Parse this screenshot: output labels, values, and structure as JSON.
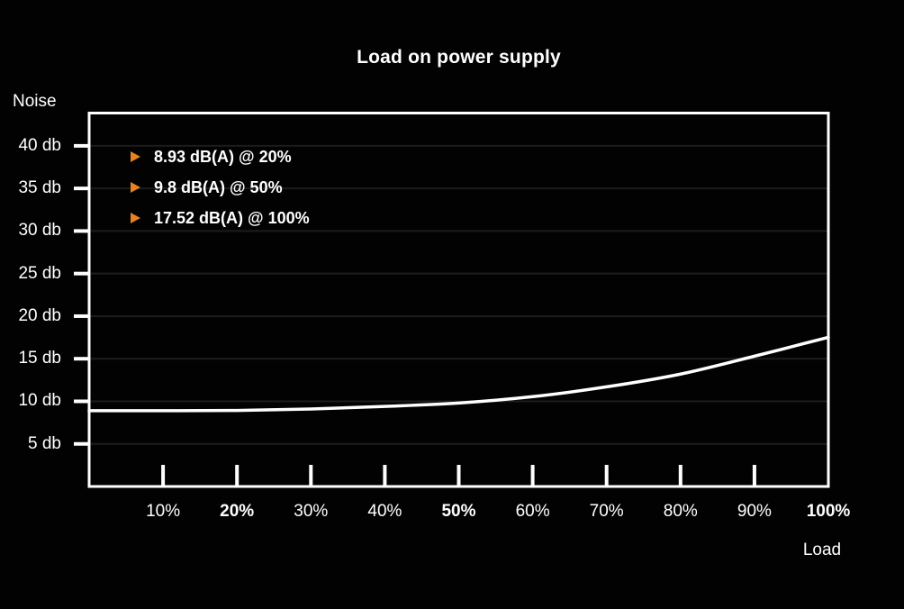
{
  "page": {
    "background_color": "#020203",
    "text_color": "#ffffff"
  },
  "chart_data": {
    "type": "line",
    "title": "Load on power supply",
    "ylabel": "Noise",
    "xlabel": "Load",
    "xlim": [
      0,
      100
    ],
    "ylim": [
      0,
      43.85
    ],
    "grid": "horizontal-only",
    "legend_position": "top-left-inside",
    "y_ticks": [
      {
        "value": 5,
        "label": "5 db"
      },
      {
        "value": 10,
        "label": "10 db"
      },
      {
        "value": 15,
        "label": "15 db"
      },
      {
        "value": 20,
        "label": "20 db"
      },
      {
        "value": 25,
        "label": "25 db"
      },
      {
        "value": 30,
        "label": "30 db"
      },
      {
        "value": 35,
        "label": "35 db"
      },
      {
        "value": 40,
        "label": "40 db"
      }
    ],
    "x_ticks": [
      {
        "value": 10,
        "label": "10%",
        "bold": false
      },
      {
        "value": 20,
        "label": "20%",
        "bold": true
      },
      {
        "value": 30,
        "label": "30%",
        "bold": false
      },
      {
        "value": 40,
        "label": "40%",
        "bold": false
      },
      {
        "value": 50,
        "label": "50%",
        "bold": true
      },
      {
        "value": 60,
        "label": "60%",
        "bold": false
      },
      {
        "value": 70,
        "label": "70%",
        "bold": false
      },
      {
        "value": 80,
        "label": "80%",
        "bold": false
      },
      {
        "value": 90,
        "label": "90%",
        "bold": false
      },
      {
        "value": 100,
        "label": "100%",
        "bold": true
      }
    ],
    "series": [
      {
        "name": "noise-vs-load",
        "x": [
          0,
          10,
          20,
          30,
          40,
          50,
          60,
          70,
          80,
          90,
          100
        ],
        "y": [
          8.9,
          8.9,
          8.93,
          9.1,
          9.4,
          9.8,
          10.55,
          11.7,
          13.2,
          15.3,
          17.52
        ],
        "color": "#ffffff"
      }
    ],
    "annotations": [
      {
        "label": "8.93 dB(A) @ 20%",
        "x": 20,
        "y": 8.93
      },
      {
        "label": "9.8 dB(A) @ 50%",
        "x": 50,
        "y": 9.8
      },
      {
        "label": "17.52 dB(A) @ 100%",
        "x": 100,
        "y": 17.52
      }
    ],
    "colors": {
      "accent_marker": "#e8821e",
      "curve": "#ffffff",
      "axis": "#ffffff",
      "gridline": "#1c1c1c",
      "background": "#020203"
    }
  }
}
